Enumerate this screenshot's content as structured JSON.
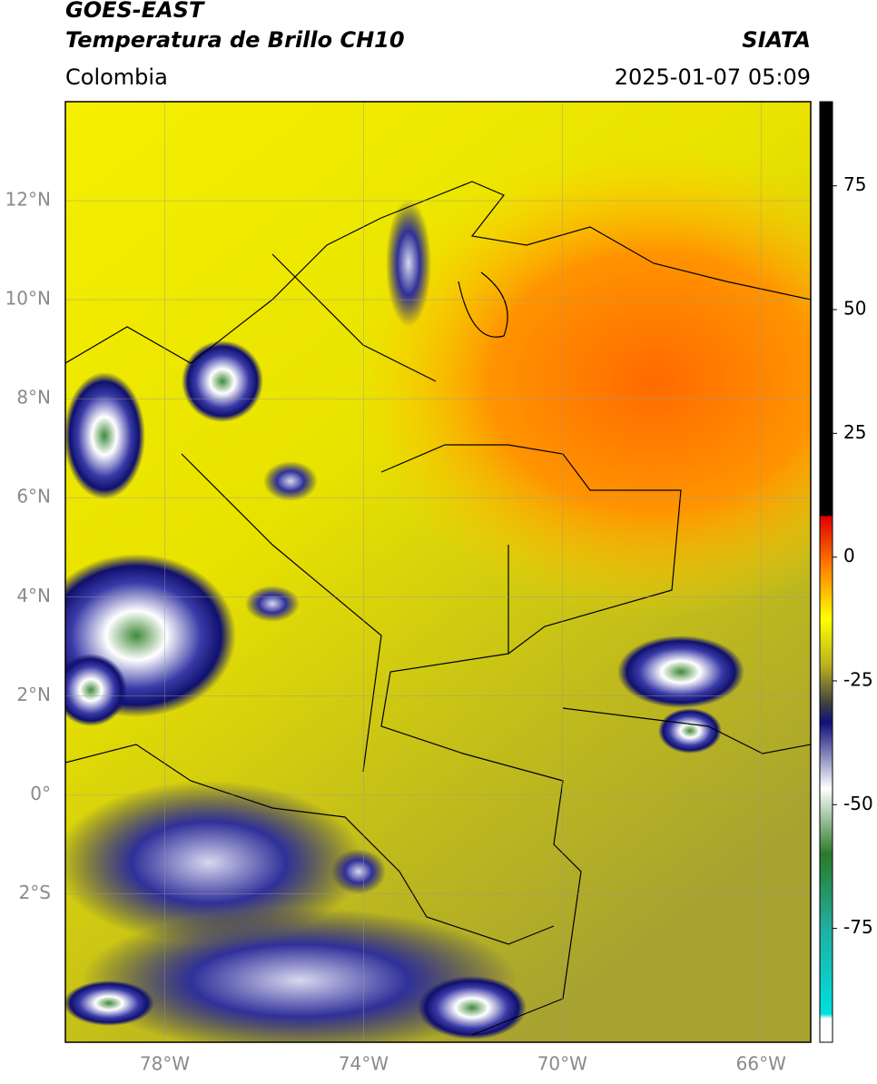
{
  "header": {
    "title": "GOES-EAST",
    "subtitle": "Temperatura de Brillo CH10",
    "source": "SIATA",
    "region": "Colombia",
    "datetime": "2025-01-07 05:09"
  },
  "map": {
    "lat_range": [
      -5,
      14
    ],
    "lon_range": [
      -80,
      -65
    ],
    "lat_ticks": [
      {
        "value": 12,
        "label": "12°N"
      },
      {
        "value": 10,
        "label": "10°N"
      },
      {
        "value": 8,
        "label": "8°N"
      },
      {
        "value": 6,
        "label": "6°N"
      },
      {
        "value": 4,
        "label": "4°N"
      },
      {
        "value": 2,
        "label": "2°N"
      },
      {
        "value": 0,
        "label": "0°"
      },
      {
        "value": -2,
        "label": "2°S"
      }
    ],
    "lon_ticks": [
      {
        "value": -78,
        "label": "78°W"
      },
      {
        "value": -74,
        "label": "74°W"
      },
      {
        "value": -70,
        "label": "70°W"
      },
      {
        "value": -66,
        "label": "66°W"
      }
    ]
  },
  "colorbar": {
    "range": [
      -98,
      92
    ],
    "ticks": [
      75,
      50,
      25,
      0,
      -25,
      -50,
      -75
    ]
  }
}
